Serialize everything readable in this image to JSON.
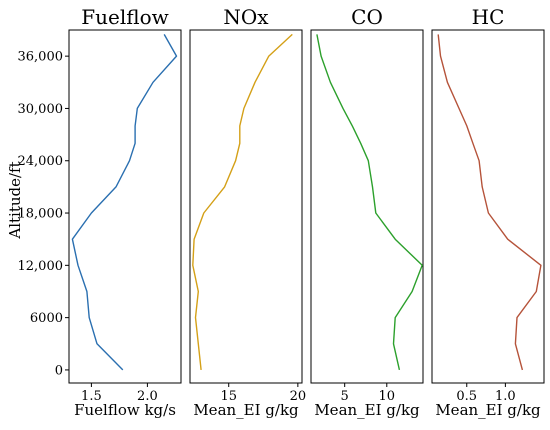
{
  "chart_data": [
    {
      "type": "line",
      "title": "Fuelflow",
      "xlabel": "Fuelflow kg/s",
      "ylabel": "Altitude/ft",
      "color": "#2a6fb0",
      "xlim": [
        1.3,
        2.3
      ],
      "xticks": [
        1.5,
        2.0
      ],
      "xtick_labels": [
        "1.5",
        "2.0"
      ],
      "ylim": [
        -1500,
        39000
      ],
      "yticks": [
        0,
        6000,
        12000,
        18000,
        24000,
        30000,
        36000
      ],
      "ytick_labels": [
        "0",
        "6000",
        "12,000",
        "18,000",
        "24,000",
        "30,000",
        "36,000"
      ],
      "series": [
        {
          "x": [
            1.78,
            1.55,
            1.48,
            1.46,
            1.38,
            1.33,
            1.5,
            1.72,
            1.84,
            1.89,
            1.89,
            1.91,
            2.05,
            2.26,
            2.15
          ],
          "y": [
            0,
            3000,
            6000,
            9000,
            12000,
            15000,
            18000,
            21000,
            24000,
            26000,
            28000,
            30000,
            33000,
            36000,
            38500
          ]
        }
      ]
    },
    {
      "type": "line",
      "title": "NOx",
      "xlabel": "Mean_EI g/kg",
      "color": "#d4a017",
      "xlim": [
        12.2,
        20.3
      ],
      "xticks": [
        15,
        20
      ],
      "xtick_labels": [
        "15",
        "20"
      ],
      "ylim": [
        -1500,
        39000
      ],
      "series": [
        {
          "x": [
            13.0,
            12.8,
            12.6,
            12.8,
            12.4,
            12.5,
            13.2,
            14.7,
            15.5,
            15.8,
            15.8,
            16.1,
            16.9,
            17.9,
            19.6
          ],
          "y": [
            0,
            3000,
            6000,
            9000,
            12000,
            15000,
            18000,
            21000,
            24000,
            26000,
            28000,
            30000,
            33000,
            36000,
            38500
          ]
        }
      ]
    },
    {
      "type": "line",
      "title": "CO",
      "xlabel": "Mean_EI g/kg",
      "color": "#2ca02c",
      "xlim": [
        1.0,
        14.3
      ],
      "xticks": [
        5,
        10
      ],
      "xtick_labels": [
        "5",
        "10"
      ],
      "ylim": [
        -1500,
        39000
      ],
      "series": [
        {
          "x": [
            11.5,
            10.8,
            11.0,
            13.0,
            14.2,
            11.0,
            8.7,
            8.3,
            7.8,
            6.9,
            5.9,
            4.8,
            3.3,
            2.2,
            1.7
          ],
          "y": [
            0,
            3000,
            6000,
            9000,
            12000,
            15000,
            18000,
            21000,
            24000,
            26000,
            28000,
            30000,
            33000,
            36000,
            38500
          ]
        }
      ]
    },
    {
      "type": "line",
      "title": "HC",
      "xlabel": "Mean_EI g/kg",
      "color": "#b5533a",
      "xlim": [
        0.05,
        1.5
      ],
      "xticks": [
        0.5,
        1.0
      ],
      "xtick_labels": [
        "0.5",
        "1.0"
      ],
      "ylim": [
        -1500,
        39000
      ],
      "series": [
        {
          "x": [
            1.22,
            1.13,
            1.15,
            1.4,
            1.46,
            1.03,
            0.78,
            0.7,
            0.66,
            0.58,
            0.5,
            0.4,
            0.25,
            0.16,
            0.13
          ],
          "y": [
            0,
            3000,
            6000,
            9000,
            12000,
            15000,
            18000,
            21000,
            24000,
            26000,
            28000,
            30000,
            33000,
            36000,
            38500
          ]
        }
      ]
    }
  ]
}
